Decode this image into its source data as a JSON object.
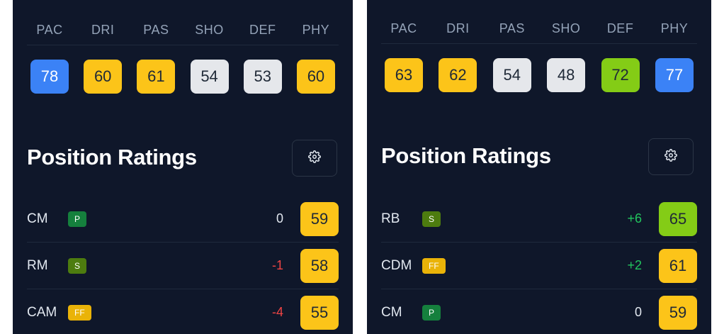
{
  "panels": [
    {
      "stat_labels": [
        "PAC",
        "DRI",
        "PAS",
        "SHO",
        "DEF",
        "PHY"
      ],
      "stat_values": [
        {
          "value": "78",
          "color": "#3b82f6"
        },
        {
          "value": "60",
          "color": "#fcc419"
        },
        {
          "value": "61",
          "color": "#fcc419"
        },
        {
          "value": "54",
          "color": "#e5e7eb"
        },
        {
          "value": "53",
          "color": "#e5e7eb"
        },
        {
          "value": "60",
          "color": "#fcc419"
        }
      ],
      "section_title": "Position Ratings",
      "settings_icon": "gear-icon",
      "positions": [
        {
          "name": "CM",
          "badge": "P",
          "diff": "0",
          "rating": "59",
          "rating_color": "#fcc419"
        },
        {
          "name": "RM",
          "badge": "S",
          "diff": "-1",
          "rating": "58",
          "rating_color": "#fcc419"
        },
        {
          "name": "CAM",
          "badge": "FF",
          "diff": "-4",
          "rating": "55",
          "rating_color": "#fcc419"
        }
      ]
    },
    {
      "stat_labels": [
        "PAC",
        "DRI",
        "PAS",
        "SHO",
        "DEF",
        "PHY"
      ],
      "stat_values": [
        {
          "value": "63",
          "color": "#fcc419"
        },
        {
          "value": "62",
          "color": "#fcc419"
        },
        {
          "value": "54",
          "color": "#e5e7eb"
        },
        {
          "value": "48",
          "color": "#e5e7eb"
        },
        {
          "value": "72",
          "color": "#84cc16"
        },
        {
          "value": "77",
          "color": "#3b82f6"
        }
      ],
      "section_title": "Position Ratings",
      "settings_icon": "gear-icon",
      "positions": [
        {
          "name": "RB",
          "badge": "S",
          "diff": "+6",
          "rating": "65",
          "rating_color": "#84cc16"
        },
        {
          "name": "CDM",
          "badge": "FF",
          "diff": "+2",
          "rating": "61",
          "rating_color": "#fcc419"
        },
        {
          "name": "CM",
          "badge": "P",
          "diff": "0",
          "rating": "59",
          "rating_color": "#fcc419"
        }
      ]
    }
  ]
}
